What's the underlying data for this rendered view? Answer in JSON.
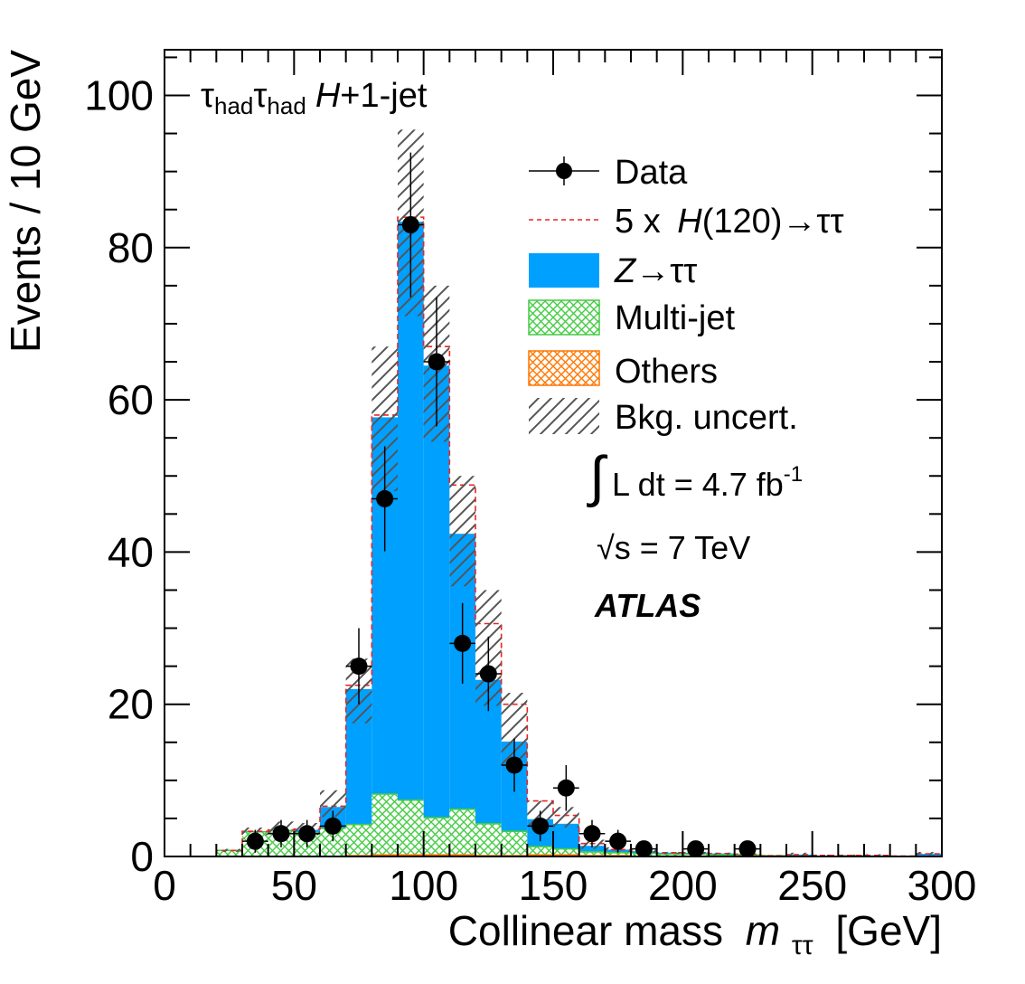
{
  "chart_data": {
    "type": "bar",
    "subtype": "stacked-histogram",
    "bin_width": 10,
    "bin_edges_start": 0,
    "xlim": [
      0,
      300
    ],
    "ylim": [
      0,
      106
    ],
    "x_ticks": [
      0,
      50,
      100,
      150,
      200,
      250,
      300
    ],
    "x_tick_labels": [
      "0",
      "50",
      "100",
      "150",
      "200",
      "250",
      "300"
    ],
    "y_ticks": [
      0,
      20,
      40,
      60,
      80,
      100
    ],
    "y_tick_labels": [
      "0",
      "20",
      "40",
      "60",
      "80",
      "100"
    ],
    "xlabel": "Collinear mass",
    "xlabel_var": "m",
    "xlabel_sub": "ττ",
    "xlabel_unit": "[GeV]",
    "ylabel": "Events / 10 GeV",
    "channel_label": {
      "tau": "τ",
      "sub": "had",
      "suffix_italic": "H",
      "suffix": "+1-jet"
    },
    "series": [
      {
        "key": "others",
        "label": "Others",
        "color": "#ff7700",
        "values": [
          0,
          0,
          0,
          0.05,
          0.1,
          0.1,
          0.1,
          0.2,
          0.3,
          0.3,
          0.3,
          0.3,
          0.2,
          0.2,
          0.3,
          0.3,
          0.2,
          0.2,
          0.1,
          0.1,
          0.1,
          0.1,
          0.1,
          0.05,
          0.05,
          0.05,
          0.05,
          0.05,
          0.05,
          0.05
        ]
      },
      {
        "key": "multijet",
        "label": "Multi-jet",
        "color": "#44cc44",
        "values": [
          0,
          0,
          0.8,
          3.2,
          3.3,
          3.0,
          3.6,
          4.0,
          7.9,
          7.1,
          4.8,
          5.9,
          4.1,
          3.1,
          1.0,
          0.7,
          0.4,
          0.3,
          0.3,
          0.2,
          0.2,
          0.1,
          0.1,
          0.05,
          0,
          0,
          0.05,
          0,
          0,
          0
        ]
      },
      {
        "key": "ztt",
        "label_var": "Z",
        "label": "→ττ",
        "color": "#00a0ff",
        "values": [
          0,
          0,
          0,
          0,
          0.1,
          0.4,
          2.8,
          17.8,
          49.5,
          76.0,
          59.4,
          36.2,
          18.9,
          11.8,
          3.6,
          3.3,
          0.8,
          0.4,
          0.3,
          0.2,
          0.2,
          0.2,
          0.1,
          0,
          0.2,
          0.05,
          0.05,
          0.1,
          0,
          0.3
        ]
      }
    ],
    "signal": {
      "label_prefix": "5 x",
      "label_var": "H",
      "label": "(120)→ττ",
      "color": "#ee2222",
      "values": [
        0,
        0,
        0.8,
        3.3,
        3.5,
        3.6,
        6.6,
        22.5,
        58.0,
        84.0,
        67.0,
        48.8,
        30.6,
        20.0,
        7.3,
        5.4,
        1.7,
        0.9,
        0.7,
        0.5,
        0.5,
        0.4,
        0.3,
        0.1,
        0.25,
        0.15,
        0.15,
        0.15,
        0.05,
        0.35
      ]
    },
    "uncertainty": {
      "label": "Bkg. uncert.",
      "lo": [
        0,
        0,
        0.6,
        2.8,
        3.0,
        2.8,
        5.2,
        17.5,
        48.0,
        71.0,
        54.5,
        35.5,
        19.8,
        12.0,
        4.0,
        3.8,
        1.0,
        0.6,
        0.5,
        0.3,
        0.3,
        0.2,
        0.2,
        0,
        0.1,
        0.05,
        0.05,
        0.05,
        0,
        0.2
      ],
      "hi": [
        0,
        0,
        1.0,
        3.8,
        4.6,
        4.4,
        8.7,
        26.0,
        67.0,
        95.5,
        75.0,
        50.0,
        35.0,
        21.5,
        7.3,
        6.5,
        2.2,
        1.2,
        0.9,
        0.6,
        0.6,
        0.5,
        0.4,
        0.15,
        0.5,
        0.25,
        0.25,
        0.3,
        0.1,
        0.6
      ]
    },
    "data_points": {
      "label": "Data",
      "x": [
        35,
        45,
        55,
        65,
        75,
        85,
        95,
        105,
        115,
        125,
        135,
        145,
        155,
        165,
        175,
        185,
        205,
        225
      ],
      "y": [
        2,
        3,
        3,
        4,
        25,
        47,
        83,
        65,
        28,
        24,
        12,
        4,
        9,
        3,
        2,
        1,
        1,
        1
      ],
      "err": [
        1.5,
        1.8,
        1.8,
        2.0,
        5.0,
        6.9,
        9.5,
        8.5,
        5.3,
        4.9,
        3.5,
        2.0,
        3.0,
        1.8,
        1.5,
        1.0,
        1.0,
        1.0
      ],
      "x_half_width": 5
    },
    "legend_position": "top-right",
    "grid": false
  },
  "annotations": {
    "lumi_integral": "∫",
    "lumi_text": "L dt = 4.7 fb",
    "lumi_sup": "-1",
    "energy_sqrt": "√",
    "energy_text": "s = 7 TeV",
    "experiment": "ATLAS"
  }
}
